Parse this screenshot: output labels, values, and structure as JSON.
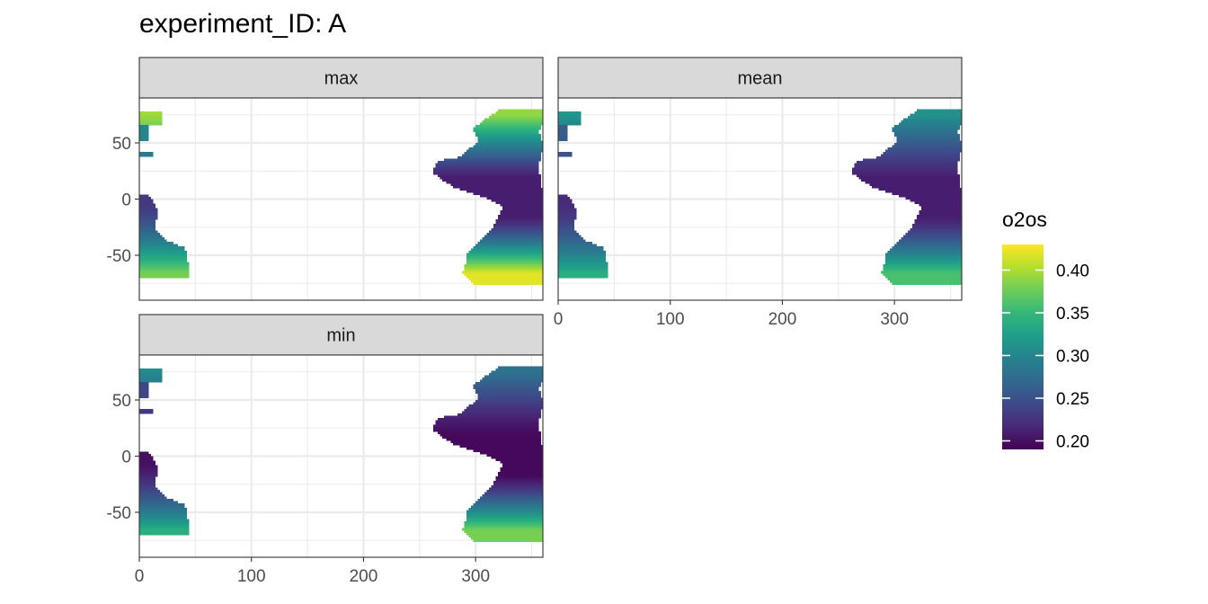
{
  "title": "experiment_ID: A",
  "chart_data": {
    "type": "heatmap",
    "title": "experiment_ID: A",
    "facets": [
      "max",
      "mean",
      "min"
    ],
    "xlabel": "",
    "ylabel": "",
    "x_ticks": [
      0,
      100,
      200,
      300
    ],
    "y_ticks": [
      50,
      0,
      -50
    ],
    "xlim": [
      0,
      360
    ],
    "ylim": [
      -90,
      90
    ],
    "legend": {
      "title": "o2os",
      "breaks": [
        0.4,
        0.35,
        0.3,
        0.25,
        0.2
      ],
      "break_labels": [
        "0.40",
        "0.35",
        "0.30",
        "0.25",
        "0.20"
      ],
      "range": [
        0.19,
        0.43
      ],
      "colormap": "viridis",
      "placement": "right"
    },
    "colors": [
      "#440154",
      "#482878",
      "#3E4A89",
      "#31688E",
      "#26828E",
      "#1F9E89",
      "#35B779",
      "#6DCD59",
      "#B4DE2C",
      "#FDE725"
    ],
    "grid": true,
    "panel_regions": {
      "max": {
        "nw_north": 0.38,
        "nw_south": 0.3,
        "africa_north": 0.23,
        "africa_south": 0.38,
        "atl_north": 0.39,
        "atl_mid": 0.21,
        "atl_equator": 0.21,
        "atl_south": 0.42
      },
      "mean": {
        "nw_north": 0.3,
        "nw_south": 0.26,
        "africa_north": 0.22,
        "africa_south": 0.34,
        "atl_north": 0.31,
        "atl_mid": 0.21,
        "atl_equator": 0.21,
        "atl_south": 0.36
      },
      "min": {
        "nw_north": 0.29,
        "nw_south": 0.24,
        "africa_north": 0.2,
        "africa_south": 0.34,
        "atl_north": 0.28,
        "atl_mid": 0.195,
        "atl_equator": 0.195,
        "atl_south": 0.38
      }
    }
  }
}
